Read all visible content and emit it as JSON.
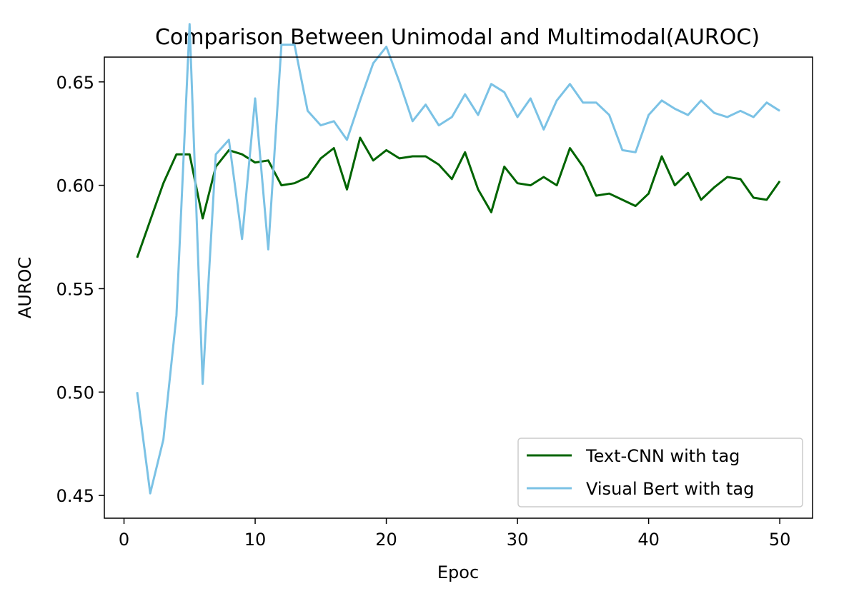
{
  "chart_data": {
    "type": "line",
    "title": "Comparison Between Unimodal and Multimodal(AUROC)",
    "xlabel": "Epoc",
    "ylabel": "AUROC",
    "xlim": [
      -1.5,
      52.5
    ],
    "ylim": [
      0.439,
      0.662
    ],
    "xticks": [
      0,
      10,
      20,
      30,
      40,
      50
    ],
    "xtick_labels": [
      "0",
      "10",
      "20",
      "30",
      "40",
      "50"
    ],
    "yticks": [
      0.45,
      0.5,
      0.55,
      0.6,
      0.65
    ],
    "ytick_labels": [
      "0.45",
      "0.50",
      "0.55",
      "0.60",
      "0.65"
    ],
    "grid": false,
    "legend_position": "lower right",
    "x": [
      1,
      2,
      3,
      4,
      5,
      6,
      7,
      8,
      9,
      10,
      11,
      12,
      13,
      14,
      15,
      16,
      17,
      18,
      19,
      20,
      21,
      22,
      23,
      24,
      25,
      26,
      27,
      28,
      29,
      30,
      31,
      32,
      33,
      34,
      35,
      36,
      37,
      38,
      39,
      40,
      41,
      42,
      43,
      44,
      45,
      46,
      47,
      48,
      49,
      50
    ],
    "series": [
      {
        "name": "Text-CNN with tag",
        "color": "#006400",
        "values": [
          0.565,
          0.583,
          0.601,
          0.615,
          0.615,
          0.584,
          0.609,
          0.617,
          0.615,
          0.611,
          0.612,
          0.6,
          0.601,
          0.604,
          0.613,
          0.618,
          0.598,
          0.623,
          0.612,
          0.617,
          0.613,
          0.614,
          0.614,
          0.61,
          0.603,
          0.616,
          0.598,
          0.587,
          0.609,
          0.601,
          0.6,
          0.604,
          0.6,
          0.618,
          0.609,
          0.595,
          0.596,
          0.593,
          0.59,
          0.596,
          0.614,
          0.6,
          0.606,
          0.593,
          0.599,
          0.604,
          0.603,
          0.594,
          0.593,
          0.602
        ]
      },
      {
        "name": "Visual Bert with tag",
        "color": "#7bc2e5",
        "values": [
          0.5,
          0.451,
          0.477,
          0.537,
          0.678,
          0.504,
          0.615,
          0.622,
          0.574,
          0.642,
          0.569,
          0.668,
          0.668,
          0.636,
          0.629,
          0.631,
          0.622,
          0.641,
          0.659,
          0.667,
          0.65,
          0.631,
          0.639,
          0.629,
          0.633,
          0.644,
          0.634,
          0.649,
          0.645,
          0.633,
          0.642,
          0.627,
          0.641,
          0.649,
          0.64,
          0.64,
          0.634,
          0.617,
          0.616,
          0.634,
          0.641,
          0.637,
          0.634,
          0.641,
          0.635,
          0.633,
          0.636,
          0.633,
          0.64,
          0.636
        ]
      }
    ]
  }
}
